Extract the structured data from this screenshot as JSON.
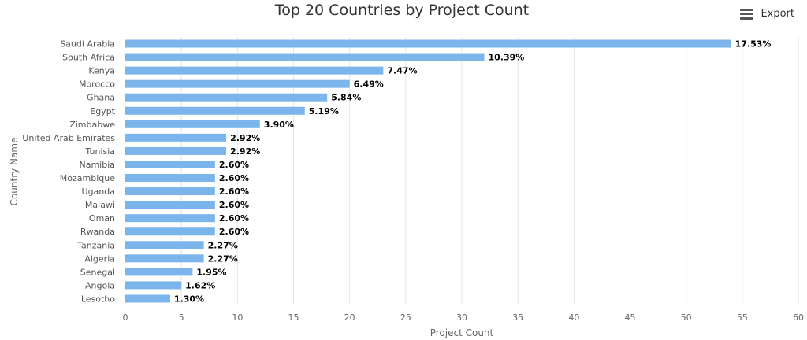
{
  "header": {
    "title": "Top 20 Countries by Project Count",
    "export_label": "Export",
    "export_icon": "hamburger-menu-icon"
  },
  "chart_data": {
    "type": "bar",
    "orientation": "horizontal",
    "title": "Top 20 Countries by Project Count",
    "xlabel": "Project Count",
    "ylabel": "Country Name",
    "xlim": [
      0,
      60
    ],
    "xticks": [
      0,
      5,
      10,
      15,
      20,
      25,
      30,
      35,
      40,
      45,
      50,
      55,
      60
    ],
    "grid": "vertical",
    "bar_color": "#7cb5ec",
    "categories": [
      "Saudi Arabia",
      "South Africa",
      "Kenya",
      "Morocco",
      "Ghana",
      "Egypt",
      "Zimbabwe",
      "United Arab Emirates",
      "Tunisia",
      "Namibia",
      "Mozambique",
      "Uganda",
      "Malawi",
      "Oman",
      "Rwanda",
      "Tanzania",
      "Algeria",
      "Senegal",
      "Angola",
      "Lesotho"
    ],
    "values": [
      54,
      32,
      23,
      20,
      18,
      16,
      12,
      9,
      9,
      8,
      8,
      8,
      8,
      8,
      8,
      7,
      7,
      6,
      5,
      4
    ],
    "data_labels": [
      "17.53%",
      "10.39%",
      "7.47%",
      "6.49%",
      "5.84%",
      "5.19%",
      "3.90%",
      "2.92%",
      "2.92%",
      "2.60%",
      "2.60%",
      "2.60%",
      "2.60%",
      "2.60%",
      "2.60%",
      "2.27%",
      "2.27%",
      "1.95%",
      "1.62%",
      "1.30%"
    ]
  }
}
